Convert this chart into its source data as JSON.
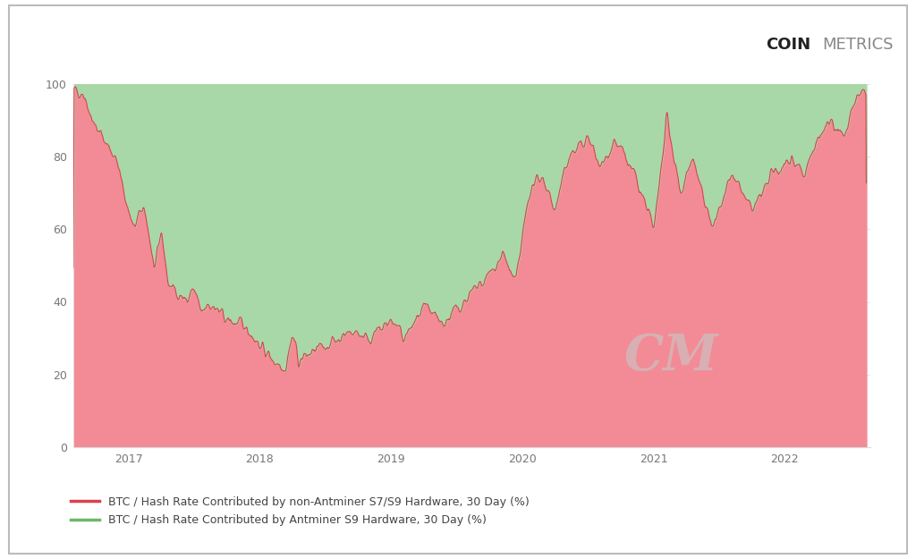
{
  "title_bold": "COIN",
  "title_regular": "METRICS",
  "legend": [
    "BTC / Hash Rate Contributed by non-Antminer S7/S9 Hardware, 30 Day (%)",
    "BTC / Hash Rate Contributed by Antminer S9 Hardware, 30 Day (%)"
  ],
  "pink_color": "#F28B96",
  "pink_line_color": "#D9414F",
  "green_color": "#A8D8A8",
  "green_line_color": "#6BB86B",
  "background_color": "#FFFFFF",
  "plot_background": "#FFFFFF",
  "border_color": "#CCCCCC",
  "ylim": [
    0,
    100
  ],
  "yticks": [
    0,
    20,
    40,
    60,
    80,
    100
  ],
  "xticks_labels": [
    "2017",
    "2018",
    "2019",
    "2020",
    "2021",
    "2022"
  ],
  "watermark": "CM"
}
